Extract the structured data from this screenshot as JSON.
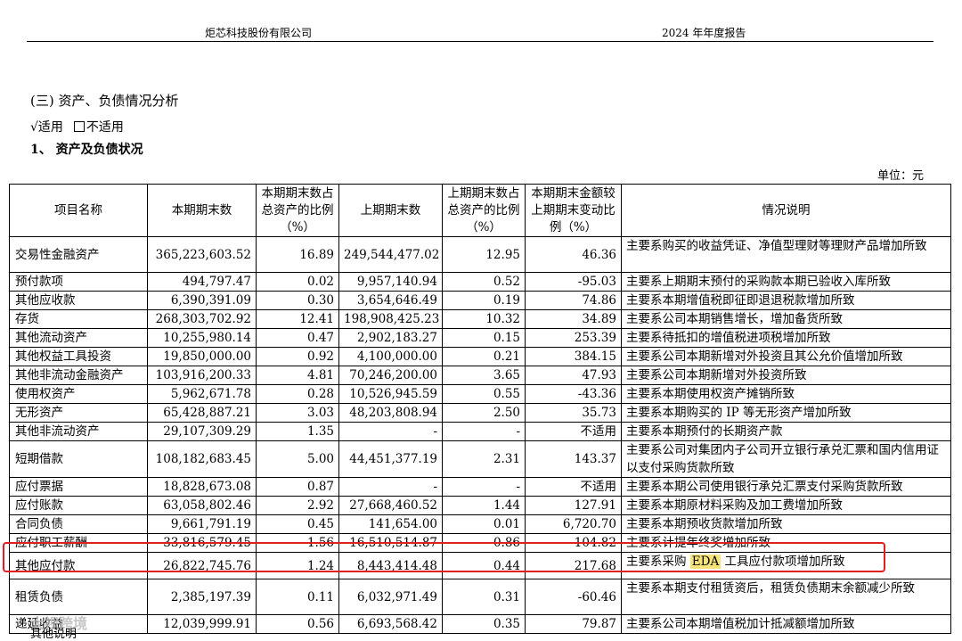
{
  "header": {
    "company": "炬芯科技股份有限公司",
    "report": "2024 年年度报告"
  },
  "section_title": "(三) 资产、负债情况分析",
  "applicable": {
    "check_mark": "√",
    "yes_label": "适用",
    "no_label": "不适用"
  },
  "subsection_title": "1、 资产及负债状况",
  "unit": "单位：元",
  "table": {
    "headers": [
      "项目名称",
      "本期期末数",
      "本期期末数占总资产的比例（%）",
      "上期期末数",
      "上期期末数占总资产的比例（%）",
      "本期期末金额较上期期末变动比例（%）",
      "情况说明"
    ],
    "rows": [
      [
        "交易性金融资产",
        "365,223,603.52",
        "16.89",
        "249,544,477.02",
        "12.95",
        "46.36",
        "主要系购买的收益凭证、净值型理财等理财产品增加所致"
      ],
      [
        "预付款项",
        "494,797.47",
        "0.02",
        "9,957,140.94",
        "0.52",
        "-95.03",
        "主要系上期期末预付的采购款本期已验收入库所致"
      ],
      [
        "其他应收款",
        "6,390,391.09",
        "0.30",
        "3,654,646.49",
        "0.19",
        "74.86",
        "主要系本期增值税即征即退退税款增加所致"
      ],
      [
        "存货",
        "268,303,702.92",
        "12.41",
        "198,908,425.23",
        "10.32",
        "34.89",
        "主要系公司本期销售增长，增加备货所致"
      ],
      [
        "其他流动资产",
        "10,255,980.14",
        "0.47",
        "2,902,183.27",
        "0.15",
        "253.39",
        "主要系待抵扣的增值税进项税增加所致"
      ],
      [
        "其他权益工具投资",
        "19,850,000.00",
        "0.92",
        "4,100,000.00",
        "0.21",
        "384.15",
        "主要系公司本期新增对外投资且其公允价值增加所致"
      ],
      [
        "其他非流动金融资产",
        "103,916,200.33",
        "4.81",
        "70,246,200.00",
        "3.65",
        "47.93",
        "主要系公司本期新增对外投资所致"
      ],
      [
        "使用权资产",
        "5,962,671.78",
        "0.28",
        "10,526,945.59",
        "0.55",
        "-43.36",
        "主要系本期使用权资产摊销所致"
      ],
      [
        "无形资产",
        "65,428,887.21",
        "3.03",
        "48,203,808.94",
        "2.50",
        "35.73",
        "主要系本期购买的 IP 等无形资产增加所致"
      ],
      [
        "其他非流动资产",
        "29,107,309.29",
        "1.35",
        "-",
        "-",
        "不适用",
        "主要系本期预付的长期资产款"
      ],
      [
        "短期借款",
        "108,182,683.45",
        "5.00",
        "44,451,377.19",
        "2.31",
        "143.37",
        "主要系公司对集团内子公司开立银行承兑汇票和国内信用证以支付采购货款所致"
      ],
      [
        "应付票据",
        "18,828,673.08",
        "0.87",
        "-",
        "-",
        "不适用",
        "主要系本期公司使用银行承兑汇票支付采购货款所致"
      ],
      [
        "应付账款",
        "63,058,802.46",
        "2.92",
        "27,668,460.52",
        "1.44",
        "127.91",
        "主要系本期原材料采购及加工费增加所致"
      ],
      [
        "合同负债",
        "9,661,791.19",
        "0.45",
        "141,654.00",
        "0.01",
        "6,720.70",
        "主要系本期预收货款增加所致"
      ],
      [
        "应付职工薪酬",
        "33,816,579.45",
        "1.56",
        "16,510,514.87",
        "0.86",
        "104.82",
        "主要系计提年终奖增加所致"
      ],
      [
        "其他应付款",
        "26,822,745.76",
        "1.24",
        "8,443,414.48",
        "0.44",
        "217.68",
        "主要系采购 EDA 工具应付款项增加所致"
      ],
      [
        "租赁负债",
        "2,385,197.39",
        "0.11",
        "6,032,971.49",
        "0.31",
        "-60.46",
        "主要系本期支付租赁资后，租赁负债期末余额减少所致"
      ],
      [
        "递延收益",
        "12,039,999.91",
        "0.56",
        "6,693,568.42",
        "0.35",
        "79.87",
        "主要系公司本期增值税加计抵减额增加所致"
      ]
    ],
    "highlighted_row_index": 15,
    "highlight_term": "EDA"
  },
  "footer_note": "其他说明",
  "watermark": "大视跨境",
  "colors": {
    "highlight_box": "#e02020",
    "text_highlight": "#f6e37a"
  }
}
